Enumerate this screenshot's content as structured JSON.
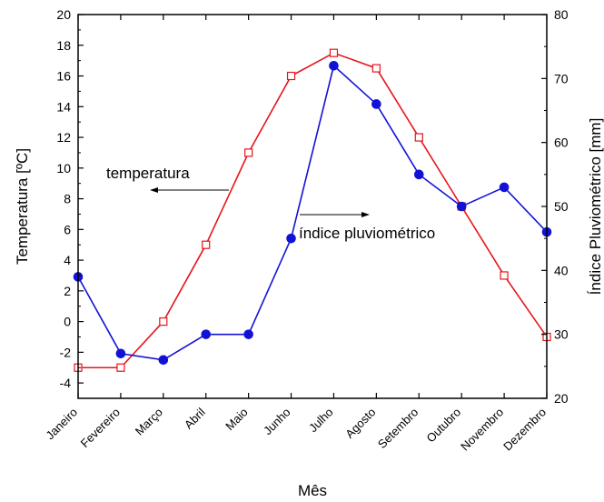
{
  "chart_data": {
    "type": "line",
    "xlabel": "Mês",
    "ylabel_left": "Temperatura [ºC]",
    "ylabel_right": "Índice Pluviométrico [mm]",
    "categories": [
      "Janeiro",
      "Fevereiro",
      "Março",
      "Abril",
      "Maio",
      "Junho",
      "Julho",
      "Agosto",
      "Setembro",
      "Outubro",
      "Novembro",
      "Dezembro"
    ],
    "y_left": {
      "range": [
        -5,
        20
      ],
      "ticks": [
        -4,
        -2,
        0,
        2,
        4,
        6,
        8,
        10,
        12,
        14,
        16,
        18,
        20
      ]
    },
    "y_right": {
      "range": [
        20,
        80
      ],
      "ticks": [
        20,
        30,
        40,
        50,
        60,
        70,
        80
      ]
    },
    "series": [
      {
        "name": "temperatura",
        "axis": "left",
        "color": "#e8141b",
        "marker": "open-square",
        "values": [
          -3,
          -3,
          0,
          5,
          11,
          16,
          17.5,
          16.5,
          12,
          7.5,
          3,
          -1
        ]
      },
      {
        "name": "índice pluviométrico",
        "axis": "right",
        "color": "#1212d6",
        "marker": "filled-circle",
        "values": [
          39,
          27,
          26,
          30,
          30,
          45,
          72,
          66,
          55,
          50,
          53,
          46
        ]
      }
    ],
    "annotations": [
      {
        "text": "temperatura",
        "arrow": "left"
      },
      {
        "text": "índice pluviométrico",
        "arrow": "right"
      }
    ],
    "grid": false
  }
}
